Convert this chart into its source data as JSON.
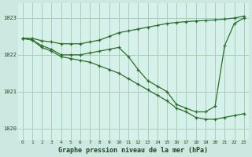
{
  "title": "Graphe pression niveau de la mer (hPa)",
  "bg_color": "#cce8e0",
  "plot_bg_color": "#d6f0ea",
  "grid_color": "#aaccbb",
  "line_color": "#2d6e2d",
  "xlim_min": -0.5,
  "xlim_max": 23.5,
  "ylim": [
    1019.7,
    1023.4
  ],
  "yticks": [
    1020,
    1021,
    1022,
    1023
  ],
  "xticks": [
    0,
    1,
    2,
    3,
    4,
    5,
    6,
    7,
    8,
    9,
    10,
    11,
    12,
    13,
    14,
    15,
    16,
    17,
    18,
    19,
    20,
    21,
    22,
    23
  ],
  "line1_x": [
    0,
    1,
    2,
    3,
    4,
    5,
    6,
    7,
    8,
    9,
    10,
    11,
    12,
    13,
    14,
    15,
    16,
    17,
    18,
    19,
    20,
    21,
    22,
    23
  ],
  "line1_y": [
    1022.45,
    1022.45,
    1022.38,
    1022.35,
    1022.3,
    1022.3,
    1022.3,
    1022.35,
    1022.4,
    1022.5,
    1022.6,
    1022.65,
    1022.7,
    1022.75,
    1022.8,
    1022.85,
    1022.88,
    1022.9,
    1022.92,
    1022.93,
    1022.95,
    1022.97,
    1023.0,
    1023.05
  ],
  "line2_x": [
    0,
    1,
    2,
    3,
    4,
    5,
    6,
    7,
    8,
    9,
    10,
    11,
    12,
    13,
    14,
    15,
    16,
    17,
    18,
    19,
    20,
    21,
    22,
    23
  ],
  "line2_y": [
    1022.45,
    1022.4,
    1022.25,
    1022.15,
    1022.0,
    1022.0,
    1022.0,
    1022.05,
    1022.1,
    1022.15,
    1022.2,
    1021.95,
    1021.6,
    1021.3,
    1021.15,
    1021.0,
    1020.65,
    1020.55,
    1020.45,
    1020.45,
    1020.6,
    1022.25,
    1022.85,
    1023.0
  ],
  "line3_x": [
    0,
    1,
    2,
    3,
    4,
    5,
    6,
    7,
    8,
    9,
    10,
    11,
    12,
    13,
    14,
    15,
    16,
    17,
    18,
    19,
    20,
    21,
    22,
    23
  ],
  "line3_y": [
    1022.45,
    1022.4,
    1022.2,
    1022.1,
    1021.95,
    1021.9,
    1021.85,
    1021.8,
    1021.7,
    1021.6,
    1021.5,
    1021.35,
    1021.2,
    1021.05,
    1020.9,
    1020.75,
    1020.55,
    1020.45,
    1020.3,
    1020.25,
    1020.25,
    1020.3,
    1020.35,
    1020.4
  ]
}
